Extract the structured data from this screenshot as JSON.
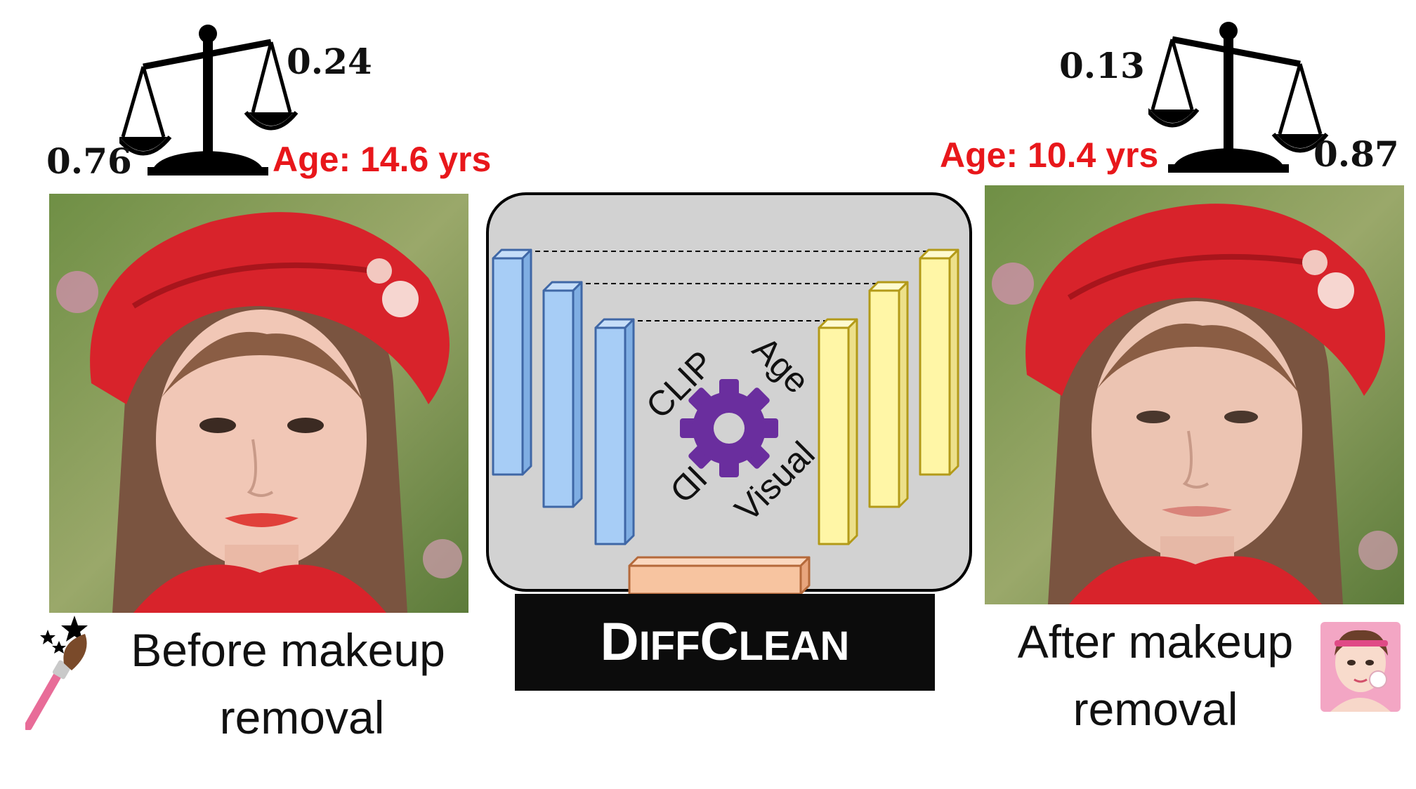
{
  "left": {
    "scale_top_value": "0.24",
    "scale_bottom_value": "0.76",
    "age_label": "Age: 14.6 yrs",
    "caption_line1": "Before makeup",
    "caption_line2": "removal",
    "icon": "makeup-brush-icon"
  },
  "right": {
    "scale_top_value": "0.13",
    "scale_bottom_value": "0.87",
    "age_label": "Age: 10.4 yrs",
    "caption_line1": "After makeup",
    "caption_line2": "removal",
    "icon": "face-cleansing-icon"
  },
  "diagram": {
    "labels": {
      "clip": "CLIP",
      "age": "Age",
      "id": "ID",
      "visual": "Visual"
    },
    "center_icon": "gear-icon",
    "colors": {
      "encoder": "#a7cdf6",
      "decoder": "#fff6a6",
      "bottleneck": "#f7c4a0",
      "gear": "#6a2e9e",
      "panel": "#d2d2d2"
    }
  },
  "brand": {
    "first_cap": "D",
    "first_rest": "IFF",
    "second_cap": "C",
    "second_rest": "LEAN"
  },
  "colors": {
    "age_text": "#e8171b"
  }
}
